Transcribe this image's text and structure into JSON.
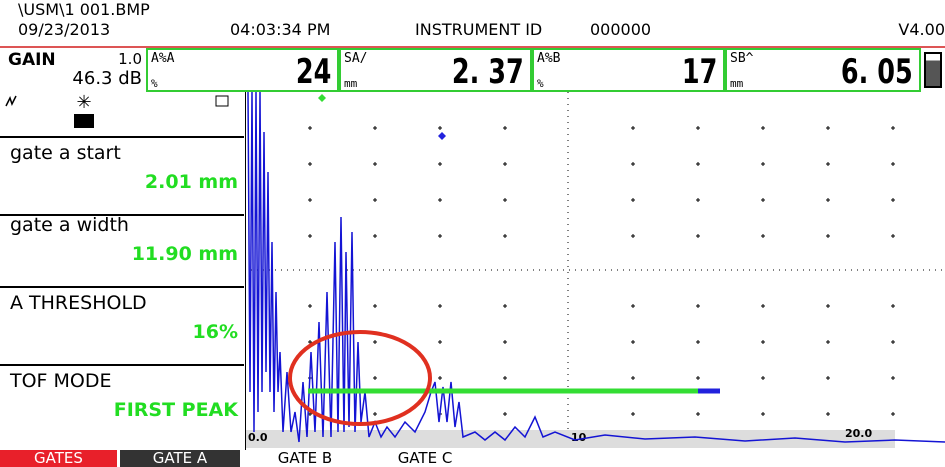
{
  "header": {
    "file": "\\USM\\1 001.BMP",
    "date": "09/23/2013",
    "time": "04:03:34 PM",
    "instrument_id_label": "INSTRUMENT ID",
    "instrument_id": "000000",
    "version": "V4.00"
  },
  "readouts": {
    "gain": {
      "label": "GAIN",
      "step": "1.0",
      "value": "46.3 dB"
    },
    "fields": [
      {
        "label": "A%A",
        "unit": "%",
        "value": "24"
      },
      {
        "label": "SA/",
        "unit": "mm",
        "value": "2. 37"
      },
      {
        "label": "A%B",
        "unit": "%",
        "value": "17"
      },
      {
        "label": "SB^",
        "unit": "mm",
        "value": "6. 05"
      }
    ]
  },
  "menu": [
    {
      "label": "gate a start",
      "value": "2.01 mm"
    },
    {
      "label": "gate a width",
      "value": "11.90 mm"
    },
    {
      "label": "A THRESHOLD",
      "value": "16%"
    },
    {
      "label": "TOF MODE",
      "value": "FIRST PEAK"
    }
  ],
  "scale": [
    "0.0",
    "10",
    "20.0"
  ],
  "tabs": [
    "GATES",
    "GATE A",
    "GATE B",
    "GATE C"
  ]
}
